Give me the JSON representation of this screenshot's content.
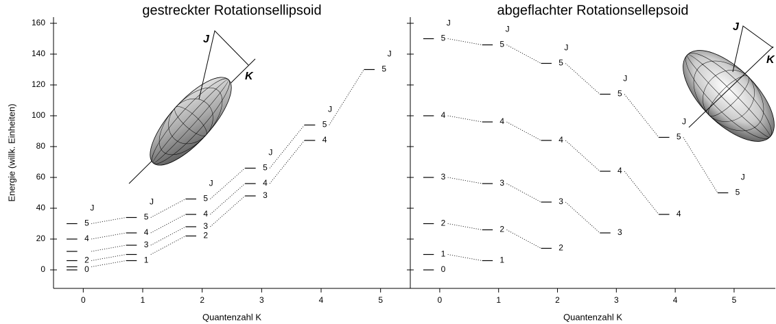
{
  "chart_data": [
    {
      "type": "levels",
      "title": "gestreckter Rotationsellipsoid",
      "x_label": "Quantenzahl K",
      "y_label": "Energie (willk. Einheiten)",
      "column_header": "J",
      "illustration_labels": [
        "J",
        "K"
      ],
      "xlim": [
        -0.5,
        5.5
      ],
      "ylim": [
        -12,
        164
      ],
      "xticks": [
        0,
        1,
        2,
        3,
        4,
        5
      ],
      "yticks": [
        0,
        20,
        40,
        60,
        80,
        100,
        120,
        140,
        160
      ],
      "show_ytick_labels": true,
      "color": "#000000",
      "series": [
        {
          "x": [
            0
          ],
          "values": [
            0
          ],
          "labels": [
            "0"
          ]
        },
        {
          "x": [
            0,
            1
          ],
          "values": [
            2,
            6
          ],
          "labels": [
            null,
            "1"
          ]
        },
        {
          "x": [
            0,
            1,
            2
          ],
          "values": [
            6,
            10,
            22
          ],
          "labels": [
            "2",
            null,
            "2"
          ]
        },
        {
          "x": [
            0,
            1,
            2,
            3
          ],
          "values": [
            12,
            16,
            28,
            48
          ],
          "labels": [
            null,
            "3",
            "3",
            "3"
          ]
        },
        {
          "x": [
            0,
            1,
            2,
            3,
            4
          ],
          "values": [
            20,
            24,
            36,
            56,
            84
          ],
          "labels": [
            "4",
            "4",
            "4",
            "4",
            "4"
          ]
        },
        {
          "x": [
            0,
            1,
            2,
            3,
            4,
            5
          ],
          "values": [
            30,
            34,
            46,
            66,
            94,
            130
          ],
          "labels": [
            "5",
            "5",
            "5",
            "5",
            "5",
            "5"
          ]
        }
      ]
    },
    {
      "type": "levels",
      "title": "abgeflachter Rotationsellepsoid",
      "x_label": "Quantenzahl K",
      "column_header": "J",
      "illustration_labels": [
        "J",
        "K"
      ],
      "xlim": [
        -0.5,
        5.7
      ],
      "ylim": [
        -12,
        164
      ],
      "xticks": [
        0,
        1,
        2,
        3,
        4,
        5
      ],
      "yticks": [
        0,
        20,
        40,
        60,
        80,
        100,
        120,
        140,
        160
      ],
      "show_ytick_labels": false,
      "color": "#000000",
      "series": [
        {
          "x": [
            0
          ],
          "values": [
            0
          ],
          "labels": [
            "0"
          ]
        },
        {
          "x": [
            0,
            1
          ],
          "values": [
            10,
            6
          ],
          "labels": [
            "1",
            "1"
          ]
        },
        {
          "x": [
            0,
            1,
            2
          ],
          "values": [
            30,
            26,
            14
          ],
          "labels": [
            "2",
            "2",
            "2"
          ]
        },
        {
          "x": [
            0,
            1,
            2,
            3
          ],
          "values": [
            60,
            56,
            44,
            24
          ],
          "labels": [
            "3",
            "3",
            "3",
            "3"
          ]
        },
        {
          "x": [
            0,
            1,
            2,
            3,
            4
          ],
          "values": [
            100,
            96,
            84,
            64,
            36
          ],
          "labels": [
            "4",
            "4",
            "4",
            "4",
            "4"
          ]
        },
        {
          "x": [
            0,
            1,
            2,
            3,
            4,
            5
          ],
          "values": [
            150,
            146,
            134,
            114,
            86,
            50
          ],
          "labels": [
            "5",
            "5",
            "5",
            "5",
            "5",
            "5"
          ]
        }
      ]
    }
  ]
}
